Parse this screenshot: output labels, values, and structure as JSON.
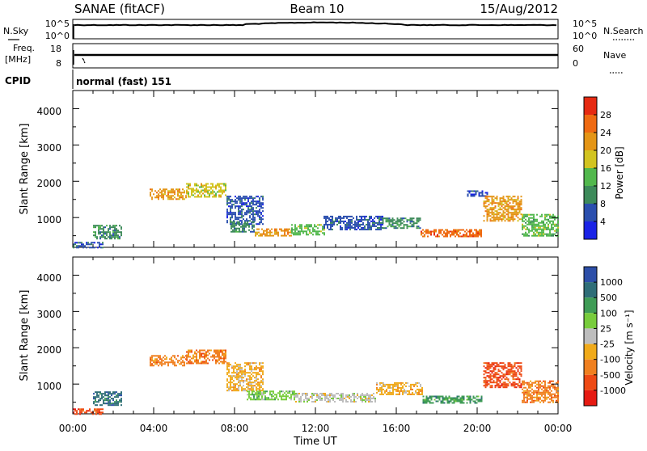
{
  "header": {
    "station": "SANAE (fitACF)",
    "beam": "Beam 10",
    "date": "15/Aug/2012"
  },
  "top_panels": {
    "nsky_label": "N.Sky",
    "nsearch_label": "N.Search",
    "nsky_ticks": [
      "10^5",
      "10^0"
    ],
    "nsearch_ticks": [
      "10^5",
      "10^0"
    ],
    "freq_label_line1": "Freq.",
    "freq_label_line2": "[MHz]",
    "freq_ticks": [
      "18",
      "8"
    ],
    "nave_label": "Nave",
    "nave_ticks": [
      "60",
      "0"
    ],
    "cpid_label": "CPID",
    "cpid_text": "normal (fast) 151"
  },
  "colorbars": {
    "power": {
      "label": "Power [dB]",
      "ticks": [
        "4",
        "8",
        "12",
        "16",
        "20",
        "24",
        "28"
      ],
      "colors": [
        "#1a23e6",
        "#2b4fae",
        "#3d8a5a",
        "#52b84d",
        "#d2c421",
        "#e49516",
        "#ef6a12",
        "#e62a12"
      ]
    },
    "velocity": {
      "label": "Velocity [m s⁻¹]",
      "ticks": [
        "1000",
        "500",
        "100",
        "25",
        "-25",
        "-100",
        "-500",
        "-1000"
      ],
      "colors": [
        "#2d4fa8",
        "#2f6e78",
        "#3f9c56",
        "#78cc3c",
        "#bdbdbd",
        "#f0aa1a",
        "#f08020",
        "#ee4a14",
        "#e61a12"
      ]
    }
  },
  "chart_data": [
    {
      "type": "heatmap",
      "title": "",
      "ylabel": "Slant Range [km]",
      "xlabel": "",
      "ylim": [
        180,
        4500
      ],
      "xlim": [
        0,
        24
      ],
      "y_ticks": [
        "1000",
        "2000",
        "3000",
        "4000"
      ],
      "x_ticks": [
        "00:00",
        "04:00",
        "08:00",
        "12:00",
        "16:00",
        "20:00",
        "00:00"
      ],
      "colorbar": "Power [dB]",
      "echo_regions": [
        {
          "t": [
            0.0,
            1.5
          ],
          "range": [
            180,
            330
          ],
          "level": 1
        },
        {
          "t": [
            1.0,
            2.4
          ],
          "range": [
            420,
            800
          ],
          "level": 2
        },
        {
          "t": [
            3.8,
            5.6
          ],
          "range": [
            1500,
            1800
          ],
          "level": 5
        },
        {
          "t": [
            5.6,
            7.6
          ],
          "range": [
            1550,
            1950
          ],
          "level": 4
        },
        {
          "t": [
            7.6,
            9.4
          ],
          "range": [
            800,
            1600
          ],
          "level": 1
        },
        {
          "t": [
            7.8,
            9.0
          ],
          "range": [
            620,
            900
          ],
          "level": 2
        },
        {
          "t": [
            9.0,
            10.8
          ],
          "range": [
            480,
            700
          ],
          "level": 5
        },
        {
          "t": [
            10.8,
            12.4
          ],
          "range": [
            550,
            820
          ],
          "level": 3
        },
        {
          "t": [
            12.4,
            15.3
          ],
          "range": [
            650,
            1050
          ],
          "level": 1
        },
        {
          "t": [
            15.3,
            17.2
          ],
          "range": [
            700,
            1000
          ],
          "level": 2
        },
        {
          "t": [
            17.2,
            20.2
          ],
          "range": [
            480,
            680
          ],
          "level": 6
        },
        {
          "t": [
            19.5,
            20.5
          ],
          "range": [
            1600,
            1750
          ],
          "level": 1
        },
        {
          "t": [
            20.3,
            22.2
          ],
          "range": [
            900,
            1600
          ],
          "level": 5
        },
        {
          "t": [
            22.2,
            24.0
          ],
          "range": [
            500,
            1100
          ],
          "level": 3
        }
      ]
    },
    {
      "type": "heatmap",
      "title": "",
      "ylabel": "Slant Range [km]",
      "xlabel": "Time UT",
      "ylim": [
        180,
        4500
      ],
      "xlim": [
        0,
        24
      ],
      "y_ticks": [
        "1000",
        "2000",
        "3000",
        "4000"
      ],
      "x_ticks": [
        "00:00",
        "04:00",
        "08:00",
        "12:00",
        "16:00",
        "20:00",
        "00:00"
      ],
      "colorbar": "Velocity [m s⁻¹]",
      "echo_regions": [
        {
          "t": [
            0.0,
            1.5
          ],
          "range": [
            180,
            330
          ],
          "level": 7
        },
        {
          "t": [
            1.0,
            2.4
          ],
          "range": [
            420,
            800
          ],
          "level": 1
        },
        {
          "t": [
            3.8,
            5.6
          ],
          "range": [
            1500,
            1800
          ],
          "level": 6
        },
        {
          "t": [
            5.6,
            7.6
          ],
          "range": [
            1550,
            1950
          ],
          "level": 6
        },
        {
          "t": [
            7.6,
            9.4
          ],
          "range": [
            800,
            1600
          ],
          "level": 5
        },
        {
          "t": [
            8.6,
            11.0
          ],
          "range": [
            580,
            820
          ],
          "level": 3
        },
        {
          "t": [
            11.0,
            15.0
          ],
          "range": [
            500,
            760
          ],
          "level": 4
        },
        {
          "t": [
            15.0,
            17.3
          ],
          "range": [
            700,
            1050
          ],
          "level": 5
        },
        {
          "t": [
            17.3,
            20.2
          ],
          "range": [
            480,
            680
          ],
          "level": 2
        },
        {
          "t": [
            20.3,
            22.2
          ],
          "range": [
            900,
            1600
          ],
          "level": 7
        },
        {
          "t": [
            22.2,
            24.0
          ],
          "range": [
            500,
            1100
          ],
          "level": 6
        }
      ]
    }
  ]
}
